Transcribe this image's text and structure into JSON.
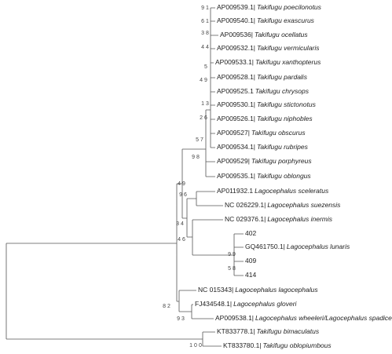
{
  "leaves": [
    {
      "accession": "AP009539.1|",
      "species": "Takifugu poecilonotus"
    },
    {
      "accession": "AP009540.1|",
      "species": "Takifugu exascurus"
    },
    {
      "accession": "AP009536|",
      "species": "Takifugu ocellatus"
    },
    {
      "accession": "AP009532.1|",
      "species": "Takifugu vermicularis"
    },
    {
      "accession": "AP009533.1|",
      "species": "Takifugu xanthopterus"
    },
    {
      "accession": "AP009528.1|",
      "species": "Takifugu pardalis"
    },
    {
      "accession": "AP009525.1",
      "species": "Takifugu chrysops"
    },
    {
      "accession": "AP009530.1|",
      "species": "Takifugu stictonotus"
    },
    {
      "accession": "AP009526.1|",
      "species": "Takifugu niphobles"
    },
    {
      "accession": "AP009527|",
      "species": "Takifugu obscurus"
    },
    {
      "accession": "AP009534.1|",
      "species": "Takifugu rubripes"
    },
    {
      "accession": "AP009529|",
      "species": "Takifugu porphyreus"
    },
    {
      "accession": "AP009535.1|",
      "species": "Takifugu oblongus"
    },
    {
      "accession": "AP011932.1",
      "species": "Lagocephalus sceleratus"
    },
    {
      "accession": "NC 026229.1|",
      "species": "Lagocephalus suezensis"
    },
    {
      "accession": "NC 029376.1|",
      "species": "Lagocephalus inermis"
    },
    {
      "accession": "402"
    },
    {
      "accession": "GQ461750.1|",
      "species": "Lagocephalus lunaris"
    },
    {
      "accession": "409"
    },
    {
      "accession": "414"
    },
    {
      "accession": "NC 015343|",
      "species": "Lagocephalus lagocephalus"
    },
    {
      "accession": "FJ434548.1|",
      "species": "Lagocephalus gloveri"
    },
    {
      "accession": "AP009538.1|",
      "species": "Lagocephalus wheeleri/Lagocephalus spadiceus"
    },
    {
      "accession": "KT833778.1|",
      "species": "Takifugu bimaculatus"
    },
    {
      "accession": "KT833780.1|",
      "species": "Takifugu oblopiumbous"
    }
  ],
  "bootstrap": [
    "91",
    "61",
    "38",
    "44",
    "5",
    "49",
    "13",
    "26",
    "57",
    "98",
    "49",
    "96",
    "34",
    "46",
    "99",
    "58",
    "82",
    "93",
    "100"
  ]
}
